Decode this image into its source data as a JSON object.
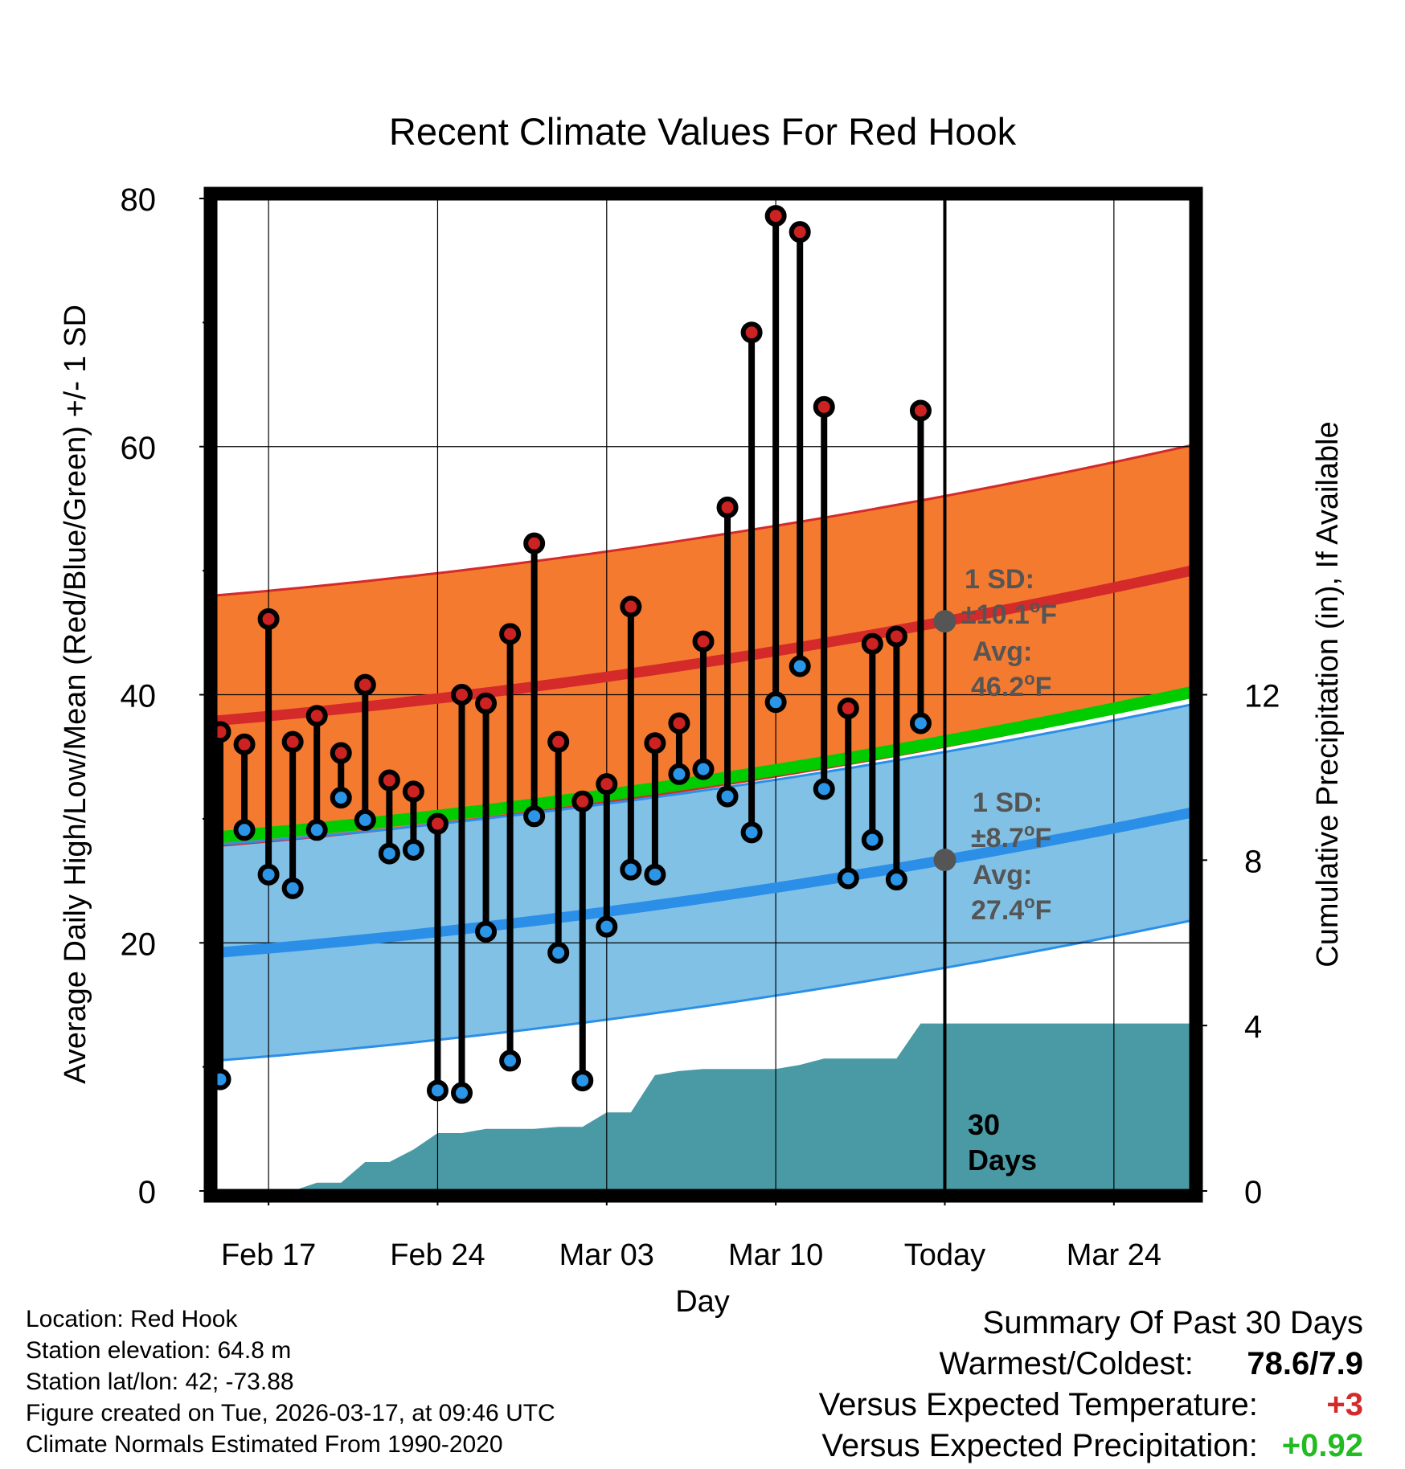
{
  "chart_data": {
    "type": "line",
    "title": "Recent Climate Values For Red Hook",
    "xlabel": "Day",
    "ylabel": "Average Daily High/Low/Mean (Red/Blue/Green) +/- 1 SD",
    "y2label": "Cumulative Precipitation (in), If Available",
    "ylim": [
      0,
      80
    ],
    "y2lim": [
      0,
      24
    ],
    "yticks": [
      "0",
      "20",
      "40",
      "60",
      "80"
    ],
    "y2ticks": [
      "0",
      "4",
      "8",
      "12"
    ],
    "xticks": [
      "Feb 17",
      "Feb 24",
      "Mar 03",
      "Mar 10",
      "Today",
      "Mar 24"
    ],
    "xlim_days": [
      -30.2,
      10.2
    ],
    "xtick_days": [
      -28,
      -21,
      -14,
      -7,
      0,
      7
    ],
    "today_day": 0,
    "normals": {
      "high_start": 37.9,
      "high_end": 50.0,
      "low_start": 19.2,
      "low_end": 30.5,
      "mean_start": 28.5,
      "mean_end": 40.2,
      "high_sd": 10.1,
      "low_sd": 8.7
    },
    "observed": {
      "days": [
        -30,
        -29,
        -28,
        -27,
        -26,
        -25,
        -24,
        -23,
        -22,
        -21,
        -20,
        -19,
        -18,
        -17,
        -16,
        -15,
        -14,
        -13,
        -12,
        -11,
        -10,
        -9,
        -8,
        -7,
        -6,
        -5,
        -4,
        -3,
        -2,
        -1
      ],
      "highs": [
        37.0,
        36.0,
        46.1,
        36.2,
        38.3,
        35.3,
        40.8,
        33.1,
        32.2,
        29.6,
        40.0,
        39.3,
        44.9,
        52.2,
        36.2,
        31.4,
        32.8,
        47.1,
        36.1,
        37.7,
        44.3,
        55.1,
        69.2,
        78.6,
        77.3,
        63.2,
        38.9,
        44.1,
        44.7,
        62.9
      ],
      "lows": [
        9.0,
        29.1,
        25.5,
        24.4,
        29.1,
        31.7,
        29.9,
        27.2,
        27.5,
        8.1,
        7.9,
        20.9,
        10.5,
        30.2,
        19.2,
        8.9,
        21.3,
        25.9,
        25.5,
        33.6,
        34.0,
        31.8,
        28.9,
        39.4,
        42.3,
        32.4,
        25.2,
        28.3,
        25.1,
        37.7
      ]
    },
    "precip": {
      "days": [
        -30.2,
        -27.0,
        -26.0,
        -25.0,
        -24.0,
        -23.0,
        -22.0,
        -21.0,
        -20.0,
        -19.0,
        -17.0,
        -16.0,
        -15.0,
        -14.0,
        -13.0,
        -12.0,
        -11.0,
        -10.0,
        -9.0,
        -7.0,
        -6.0,
        -5.0,
        -4.0,
        -3.0,
        -2.0,
        -1.0,
        0.0,
        10.2
      ],
      "values": [
        0,
        0,
        0.2,
        0.2,
        0.7,
        0.7,
        1.0,
        1.4,
        1.4,
        1.5,
        1.5,
        1.55,
        1.55,
        1.9,
        1.9,
        2.8,
        2.9,
        2.95,
        2.95,
        2.95,
        3.05,
        3.2,
        3.2,
        3.2,
        3.2,
        4.05,
        4.05,
        4.05
      ]
    },
    "annotations": {
      "high_sd_label": "1 SD:",
      "high_sd_value": "±10.1",
      "high_avg_label": "Avg:",
      "high_avg_value": "46.2",
      "low_sd_label": "1 SD:",
      "low_sd_value": "±8.7",
      "low_avg_label": "Avg:",
      "low_avg_value": "27.4",
      "unit": "F",
      "degree": "o",
      "days_count": "30",
      "days_word": "Days"
    }
  },
  "info": {
    "location": "Location: Red Hook",
    "elevation": "Station elevation: 64.8 m",
    "latlon": "Station lat/lon: 42; -73.88",
    "created": "Figure created on Tue, 2026-03-17, at 09:46 UTC",
    "normals": "Climate Normals Estimated From 1990-2020"
  },
  "summary": {
    "title": "Summary Of Past 30 Days",
    "warm_cold_label": "Warmest/Coldest:",
    "warm_cold_value": "78.6/7.9",
    "temp_label": "Versus Expected Temperature:",
    "temp_value": "+3",
    "precip_label": "Versus Expected Precipitation:",
    "precip_value": "+0.92"
  },
  "colors": {
    "high_band": "#f47a30",
    "high_line": "#d42a2a",
    "low_band": "#82c1e6",
    "low_line": "#2b8fe8",
    "mean_line": "#00cc00",
    "precip": "#4a9aa5",
    "high_dot": "#cc2222",
    "low_dot": "#2b95e8",
    "temp_value": "#d42a2a",
    "precip_value": "#22bb22"
  }
}
